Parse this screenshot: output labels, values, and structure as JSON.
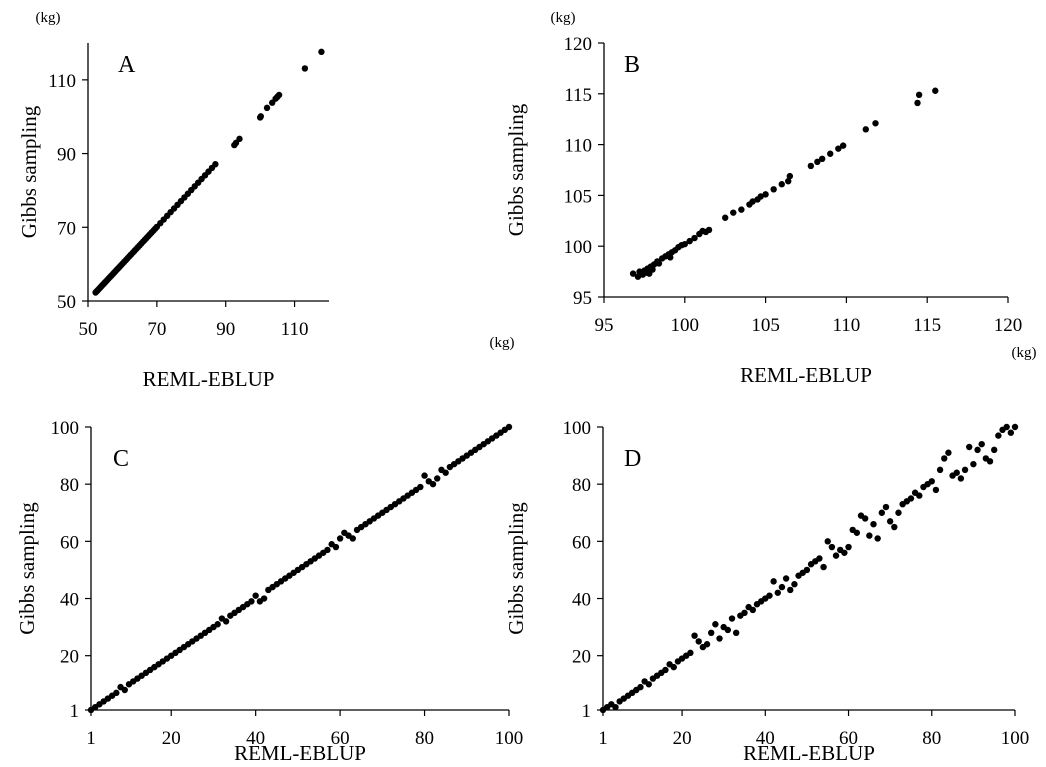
{
  "chart_data": [
    {
      "type": "scatter",
      "panel_label": "A",
      "xlabel": "REML-EBLUP",
      "ylabel": "Gibbs sampling",
      "x_unit": "(kg)",
      "y_unit": "(kg)",
      "xlim": [
        50,
        120
      ],
      "ylim": [
        50,
        120
      ],
      "xticks": [
        50,
        70,
        90,
        110
      ],
      "yticks": [
        50,
        70,
        90,
        110
      ],
      "x": [
        52.2,
        52.5,
        52.8,
        53.1,
        53.4,
        53.7,
        54.0,
        54.3,
        54.6,
        54.9,
        55.2,
        55.6,
        56.0,
        56.4,
        56.8,
        57.2,
        57.6,
        58.0,
        58.4,
        58.8,
        59.2,
        59.6,
        60.0,
        60.5,
        61.0,
        61.5,
        62.0,
        62.5,
        63.0,
        63.5,
        64.0,
        64.5,
        65.0,
        65.5,
        66.0,
        66.5,
        67.0,
        67.5,
        68.0,
        68.5,
        69.0,
        69.5,
        70.0,
        71.0,
        72.0,
        73.0,
        74.0,
        75.0,
        76.0,
        77.0,
        78.0,
        79.0,
        80.0,
        81.0,
        82.0,
        83.0,
        84.0,
        85.0,
        86.0,
        87.0,
        92.5,
        93.0,
        94.0,
        100.0,
        100.2,
        102.0,
        103.5,
        104.5,
        105.0,
        105.5,
        113.0,
        117.8
      ],
      "y": [
        52.3,
        52.6,
        52.9,
        53.2,
        53.5,
        53.8,
        54.1,
        54.4,
        54.7,
        55.0,
        55.3,
        55.7,
        56.1,
        56.5,
        56.9,
        57.3,
        57.7,
        58.1,
        58.5,
        58.9,
        59.3,
        59.7,
        60.1,
        60.6,
        61.1,
        61.6,
        62.1,
        62.6,
        63.1,
        63.6,
        64.1,
        64.6,
        65.1,
        65.6,
        66.1,
        66.6,
        67.1,
        67.6,
        68.1,
        68.6,
        69.1,
        69.6,
        70.1,
        71.1,
        72.1,
        73.1,
        74.1,
        75.1,
        76.1,
        77.1,
        78.1,
        79.1,
        80.1,
        81.1,
        82.1,
        83.1,
        84.1,
        85.1,
        86.1,
        87.1,
        92.3,
        92.9,
        94.0,
        99.8,
        100.1,
        102.4,
        103.8,
        104.9,
        105.4,
        105.9,
        113.1,
        117.6
      ]
    },
    {
      "type": "scatter",
      "panel_label": "B",
      "xlabel": "REML-EBLUP",
      "ylabel": "Gibbs sampling",
      "x_unit": "(kg)",
      "y_unit": "(kg)",
      "xlim": [
        95,
        120
      ],
      "ylim": [
        95,
        120
      ],
      "xticks": [
        95,
        100,
        105,
        110,
        115,
        120
      ],
      "yticks": [
        95,
        100,
        105,
        110,
        115,
        120
      ],
      "x": [
        96.8,
        97.1,
        97.2,
        97.4,
        97.5,
        97.6,
        97.7,
        97.8,
        97.9,
        98.0,
        98.1,
        98.3,
        98.4,
        98.6,
        98.8,
        99.0,
        99.1,
        99.2,
        99.4,
        99.6,
        99.8,
        100.0,
        100.3,
        100.6,
        100.9,
        101.1,
        101.3,
        101.5,
        102.5,
        103.0,
        103.5,
        104.0,
        104.2,
        104.5,
        104.7,
        105.0,
        105.5,
        106.0,
        106.4,
        106.5,
        107.8,
        108.2,
        108.5,
        109.0,
        109.5,
        109.8,
        111.2,
        111.8,
        114.4,
        114.5,
        115.5
      ],
      "y": [
        97.3,
        97.0,
        97.5,
        97.2,
        97.6,
        97.4,
        97.8,
        97.3,
        98.0,
        97.7,
        98.2,
        98.5,
        98.3,
        98.8,
        99.0,
        99.2,
        98.9,
        99.4,
        99.6,
        99.9,
        100.1,
        100.2,
        100.5,
        100.8,
        101.2,
        101.5,
        101.4,
        101.6,
        102.8,
        103.3,
        103.6,
        104.1,
        104.4,
        104.6,
        104.9,
        105.1,
        105.6,
        106.1,
        106.4,
        106.9,
        107.9,
        108.3,
        108.6,
        109.1,
        109.6,
        109.9,
        111.5,
        112.1,
        114.1,
        114.9,
        115.3
      ]
    },
    {
      "type": "scatter",
      "panel_label": "C",
      "xlabel": "REML-EBLUP",
      "ylabel": "Gibbs sampling",
      "xlim": [
        1,
        100
      ],
      "ylim": [
        1,
        100
      ],
      "xticks": [
        1,
        20,
        40,
        60,
        80,
        100
      ],
      "yticks": [
        1,
        20,
        40,
        60,
        80,
        100
      ],
      "x": [
        1,
        2,
        3,
        4,
        5,
        6,
        7,
        8,
        9,
        10,
        11,
        12,
        13,
        14,
        15,
        16,
        17,
        18,
        19,
        20,
        21,
        22,
        23,
        24,
        25,
        26,
        27,
        28,
        29,
        30,
        31,
        32,
        33,
        34,
        35,
        36,
        37,
        38,
        39,
        40,
        41,
        42,
        43,
        44,
        45,
        46,
        47,
        48,
        49,
        50,
        51,
        52,
        53,
        54,
        55,
        56,
        57,
        58,
        59,
        60,
        61,
        62,
        63,
        64,
        65,
        66,
        67,
        68,
        69,
        70,
        71,
        72,
        73,
        74,
        75,
        76,
        77,
        78,
        79,
        80,
        81,
        82,
        83,
        84,
        85,
        86,
        87,
        88,
        89,
        90,
        91,
        92,
        93,
        94,
        95,
        96,
        97,
        98,
        99,
        100
      ],
      "y": [
        1,
        2,
        3,
        4,
        5,
        6,
        7,
        9,
        8,
        10,
        11,
        12,
        13,
        14,
        15,
        16,
        17,
        18,
        19,
        20,
        21,
        22,
        23,
        24,
        25,
        26,
        27,
        28,
        29,
        30,
        31,
        33,
        32,
        34,
        35,
        36,
        37,
        38,
        39,
        41,
        39,
        40,
        43,
        44,
        45,
        46,
        47,
        48,
        49,
        50,
        51,
        52,
        53,
        54,
        55,
        56,
        57,
        59,
        58,
        61,
        63,
        62,
        61,
        64,
        65,
        66,
        67,
        68,
        69,
        70,
        71,
        72,
        73,
        74,
        75,
        76,
        77,
        78,
        79,
        83,
        81,
        80,
        82,
        85,
        84,
        86,
        87,
        88,
        89,
        90,
        91,
        92,
        93,
        94,
        95,
        96,
        97,
        98,
        99,
        100
      ]
    },
    {
      "type": "scatter",
      "panel_label": "D",
      "xlabel": "REML-EBLUP",
      "ylabel": "Gibbs sampling",
      "xlim": [
        1,
        100
      ],
      "ylim": [
        1,
        100
      ],
      "xticks": [
        1,
        20,
        40,
        60,
        80,
        100
      ],
      "yticks": [
        1,
        20,
        40,
        60,
        80,
        100
      ],
      "x": [
        1,
        2,
        3,
        4,
        5,
        6,
        7,
        8,
        9,
        10,
        11,
        12,
        13,
        14,
        15,
        16,
        17,
        18,
        19,
        20,
        21,
        22,
        23,
        24,
        25,
        26,
        27,
        28,
        29,
        30,
        31,
        32,
        33,
        34,
        35,
        36,
        37,
        38,
        39,
        40,
        41,
        42,
        43,
        44,
        45,
        46,
        47,
        48,
        49,
        50,
        51,
        52,
        53,
        54,
        55,
        56,
        57,
        58,
        59,
        60,
        61,
        62,
        63,
        64,
        65,
        66,
        67,
        68,
        69,
        70,
        71,
        72,
        73,
        74,
        75,
        76,
        77,
        78,
        79,
        80,
        81,
        82,
        83,
        84,
        85,
        86,
        87,
        88,
        89,
        90,
        91,
        92,
        93,
        94,
        95,
        96,
        97,
        98,
        99,
        100
      ],
      "y": [
        1,
        2,
        3,
        2,
        4,
        5,
        6,
        7,
        8,
        9,
        11,
        10,
        12,
        13,
        14,
        15,
        17,
        16,
        18,
        19,
        20,
        21,
        27,
        25,
        23,
        24,
        28,
        31,
        26,
        30,
        29,
        33,
        28,
        34,
        35,
        37,
        36,
        38,
        39,
        40,
        41,
        46,
        42,
        44,
        47,
        43,
        45,
        48,
        49,
        50,
        52,
        53,
        54,
        51,
        60,
        58,
        55,
        57,
        56,
        58,
        64,
        63,
        69,
        68,
        62,
        66,
        61,
        70,
        72,
        67,
        65,
        70,
        73,
        74,
        75,
        77,
        76,
        79,
        80,
        81,
        78,
        85,
        89,
        91,
        83,
        84,
        82,
        85,
        93,
        87,
        92,
        94,
        89,
        88,
        92,
        97,
        99,
        100,
        98,
        100
      ]
    }
  ]
}
